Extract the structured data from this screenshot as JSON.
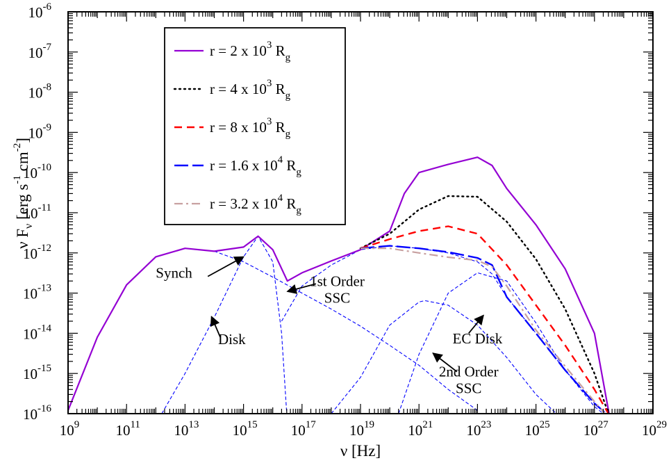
{
  "chart_data": {
    "type": "line",
    "xlabel": "ν [Hz]",
    "ylabel": "ν F_ν [erg s^-1 cm^-2]",
    "xscale": "log",
    "yscale": "log",
    "xlim": [
      1000000000.0,
      1e+29
    ],
    "ylim": [
      1e-16,
      1e-06
    ],
    "grid": false,
    "legend_position": "top-left",
    "x_ticks": [
      {
        "base": "10",
        "exp": "9",
        "value": 1000000000.0
      },
      {
        "base": "10",
        "exp": "11",
        "value": 100000000000.0
      },
      {
        "base": "10",
        "exp": "13",
        "value": 10000000000000.0
      },
      {
        "base": "10",
        "exp": "15",
        "value": 1000000000000000.0
      },
      {
        "base": "10",
        "exp": "17",
        "value": 1e+17
      },
      {
        "base": "10",
        "exp": "19",
        "value": 1e+19
      },
      {
        "base": "10",
        "exp": "21",
        "value": 1e+21
      },
      {
        "base": "10",
        "exp": "23",
        "value": 1e+23
      },
      {
        "base": "10",
        "exp": "25",
        "value": 1e+25
      },
      {
        "base": "10",
        "exp": "27",
        "value": 1e+27
      },
      {
        "base": "10",
        "exp": "29",
        "value": 1e+29
      }
    ],
    "y_ticks": [
      {
        "base": "10",
        "exp": "-16",
        "value": 1e-16
      },
      {
        "base": "10",
        "exp": "-15",
        "value": 1e-15
      },
      {
        "base": "10",
        "exp": "-14",
        "value": 1e-14
      },
      {
        "base": "10",
        "exp": "-13",
        "value": 1e-13
      },
      {
        "base": "10",
        "exp": "-12",
        "value": 1e-12
      },
      {
        "base": "10",
        "exp": "-11",
        "value": 1e-11
      },
      {
        "base": "10",
        "exp": "-10",
        "value": 1e-10
      },
      {
        "base": "10",
        "exp": "-9",
        "value": 1e-09
      },
      {
        "base": "10",
        "exp": "-8",
        "value": 1e-08
      },
      {
        "base": "10",
        "exp": "-7",
        "value": 1e-07
      },
      {
        "base": "10",
        "exp": "-6",
        "value": 1e-06
      }
    ],
    "series": [
      {
        "name": "r = 2 x 10^3 R_g",
        "legend": {
          "prefix": "r = 2 x 10",
          "exp": "3",
          "unit": "R",
          "sub": "g"
        },
        "color": "#9400D3",
        "dash": "solid",
        "x": [
          1000000000.0,
          10000000000.0,
          100000000000.0,
          1000000000000.0,
          10000000000000.0,
          100000000000000.0,
          1000000000000000.0,
          3160000000000000.0,
          1e+16,
          3.16e+16,
          1e+17,
          1e+18,
          1e+19,
          1e+20,
          3.16e+20,
          1e+21,
          1e+22,
          1e+23,
          3.16e+23,
          1e+24,
          1e+25,
          1e+26,
          1e+27,
          3.16e+27
        ],
        "y": [
          1.2e-16,
          8e-15,
          1.6e-13,
          8e-13,
          1.3e-12,
          1.1e-12,
          1.4e-12,
          2.6e-12,
          1.2e-12,
          2e-13,
          3.2e-13,
          6.3e-13,
          1.2e-12,
          3.5e-12,
          3e-11,
          1e-10,
          1.6e-10,
          2.4e-10,
          1.5e-10,
          4e-11,
          5e-12,
          4e-13,
          1e-14,
          1e-16
        ]
      },
      {
        "name": "r = 4 x 10^3 R_g",
        "legend": {
          "prefix": "r = 4 x 10",
          "exp": "3",
          "unit": "R",
          "sub": "g"
        },
        "color": "#000000",
        "dash": "dotted",
        "x": [
          1e+19,
          1e+20,
          1e+21,
          1e+22,
          1e+23,
          1e+24,
          1e+25,
          1e+26,
          1e+27,
          3e+27
        ],
        "y": [
          1.3e-12,
          3e-12,
          1.2e-11,
          2.6e-11,
          2.5e-11,
          6e-12,
          7e-13,
          4e-14,
          1e-15,
          1e-16
        ]
      },
      {
        "name": "r = 8 x 10^3 R_g",
        "legend": {
          "prefix": "r = 8 x 10",
          "exp": "3",
          "unit": "R",
          "sub": "g"
        },
        "color": "#FF0000",
        "dash": "dashed",
        "x": [
          1e+19,
          1e+20,
          1e+21,
          1e+22,
          1e+23,
          1e+24,
          1e+25,
          1e+26,
          1e+27,
          3e+27
        ],
        "y": [
          1.3e-12,
          2.2e-12,
          3.5e-12,
          4.6e-12,
          3e-12,
          5e-13,
          5e-14,
          5e-15,
          4e-16,
          1e-16
        ]
      },
      {
        "name": "r = 1.6 x 10^4 R_g",
        "legend": {
          "prefix": "r = 1.6 x 10",
          "exp": "4",
          "unit": "R",
          "sub": "g"
        },
        "color": "#0000FF",
        "dash": "longdash",
        "x": [
          1e+19,
          1e+20,
          1e+21,
          1e+22,
          1e+23,
          3.16e+23,
          1e+24,
          1e+25,
          1e+26,
          1e+27,
          2.5e+27
        ],
        "y": [
          1.3e-12,
          1.5e-12,
          1.3e-12,
          1.05e-12,
          7.5e-13,
          5e-13,
          8e-14,
          1e-14,
          1.2e-15,
          1.8e-16,
          1e-16
        ]
      },
      {
        "name": "r = 3.2 x 10^4 R_g",
        "legend": {
          "prefix": "r = 3.2 x 10",
          "exp": "4",
          "unit": "R",
          "sub": "g"
        },
        "color": "#C8A0A0",
        "dash": "dashdot",
        "x": [
          1e+19,
          1e+20,
          1e+21,
          1e+22,
          1e+23,
          3.16e+23,
          1e+24,
          1e+25,
          1e+26,
          1e+27,
          2.3e+27
        ],
        "y": [
          1.3e-12,
          1.3e-12,
          1e-12,
          7.8e-13,
          6.5e-13,
          4.5e-13,
          1.5e-13,
          1.2e-14,
          1.5e-15,
          2e-16,
          1e-16
        ]
      },
      {
        "name": "Synch",
        "component": true,
        "color": "#0000FF",
        "dash": "thin",
        "x": [
          1000000000.0,
          10000000000.0,
          100000000000.0,
          1000000000000.0,
          10000000000000.0,
          100000000000000.0,
          1000000000000000.0,
          1e+16,
          1e+17,
          1e+18,
          1e+19,
          1e+20,
          1e+21,
          1e+22,
          1e+23
        ],
        "y": [
          1.2e-16,
          8e-15,
          1.6e-13,
          8e-13,
          1.3e-12,
          1.1e-12,
          6e-13,
          2.5e-13,
          1e-13,
          4e-14,
          1.5e-14,
          5e-15,
          1.6e-15,
          4e-16,
          1.2e-16
        ]
      },
      {
        "name": "Disk",
        "component": true,
        "color": "#0000FF",
        "dash": "thin",
        "x": [
          1600000000000.0,
          10000000000000.0,
          100000000000000.0,
          1000000000000000.0,
          3160000000000000.0,
          1e+16,
          2e+16,
          3e+16
        ],
        "y": [
          1e-16,
          1e-15,
          2.5e-14,
          8e-13,
          2.6e-12,
          6e-13,
          1e-14,
          1e-16
        ]
      },
      {
        "name": "1st Order SSC",
        "component": true,
        "color": "#0000FF",
        "dash": "thin",
        "x": [
          2e+16,
          1e+17,
          1e+18,
          1e+19,
          1e+20,
          1e+21,
          1e+22,
          1e+23,
          3.16e+23,
          1e+24,
          1e+25,
          1e+26,
          1e+27,
          2.4e+27
        ],
        "y": [
          2e-14,
          1.5e-13,
          5e-13,
          1.2e-12,
          1.5e-12,
          1.3e-12,
          1e-12,
          6e-13,
          3e-13,
          8e-14,
          1e-14,
          1.2e-15,
          1.8e-16,
          1e-16
        ]
      },
      {
        "name": "EC Disk",
        "component": true,
        "color": "#0000FF",
        "dash": "thin",
        "x": [
          2e+20,
          1e+21,
          1e+22,
          1e+23,
          1e+24,
          1e+25,
          1e+26,
          1e+27,
          2e+27
        ],
        "y": [
          1e-16,
          3e-15,
          1e-13,
          3.2e-13,
          2e-13,
          1.8e-14,
          1.2e-15,
          1.5e-16,
          1e-16
        ]
      },
      {
        "name": "2nd Order SSC",
        "component": true,
        "color": "#0000FF",
        "dash": "thin",
        "x": [
          1e+18,
          1e+19,
          1e+20,
          1e+21,
          1.58e+21,
          1e+22,
          1e+23,
          1e+24,
          1e+25,
          5e+25
        ],
        "y": [
          1e-16,
          8e-16,
          1.6e-14,
          6e-14,
          6.5e-14,
          5e-14,
          1.6e-14,
          2.5e-15,
          3e-16,
          1e-16
        ]
      }
    ],
    "annotations": [
      {
        "lines": [
          "Synch"
        ],
        "text_x": 1000000000000.0,
        "text_y": 2.4e-13,
        "anchor": "start",
        "arrow_from": [
          60000000000000.0,
          2.6e-13
        ],
        "arrow_to": [
          1000000000000000.0,
          8e-13
        ]
      },
      {
        "lines": [
          "1st Order",
          "SSC"
        ],
        "text_x": 1.6e+18,
        "text_y": 1.5e-13,
        "anchor": "middle",
        "arrow_from": [
          3e+17,
          1.7e-13
        ],
        "arrow_to": [
          3.16e+16,
          1.1e-13
        ]
      },
      {
        "lines": [
          "Disk"
        ],
        "text_x": 400000000000000.0,
        "text_y": 5.4e-15,
        "anchor": "middle",
        "arrow_from": [
          160000000000000.0,
          8e-15
        ],
        "arrow_to": [
          80000000000000.0,
          2.6e-14
        ]
      },
      {
        "lines": [
          "EC Disk"
        ],
        "text_x": 1e+23,
        "text_y": 5.6e-15,
        "anchor": "middle",
        "arrow_from": [
          5e+22,
          1e-14
        ],
        "arrow_to": [
          1.6e+23,
          2.8e-14
        ]
      },
      {
        "lines": [
          "2nd Order",
          "SSC"
        ],
        "text_x": 5e+22,
        "text_y": 8.5e-16,
        "anchor": "middle",
        "arrow_from": [
          2e+22,
          1.1e-15
        ],
        "arrow_to": [
          3e+21,
          3.2e-15
        ]
      }
    ]
  }
}
